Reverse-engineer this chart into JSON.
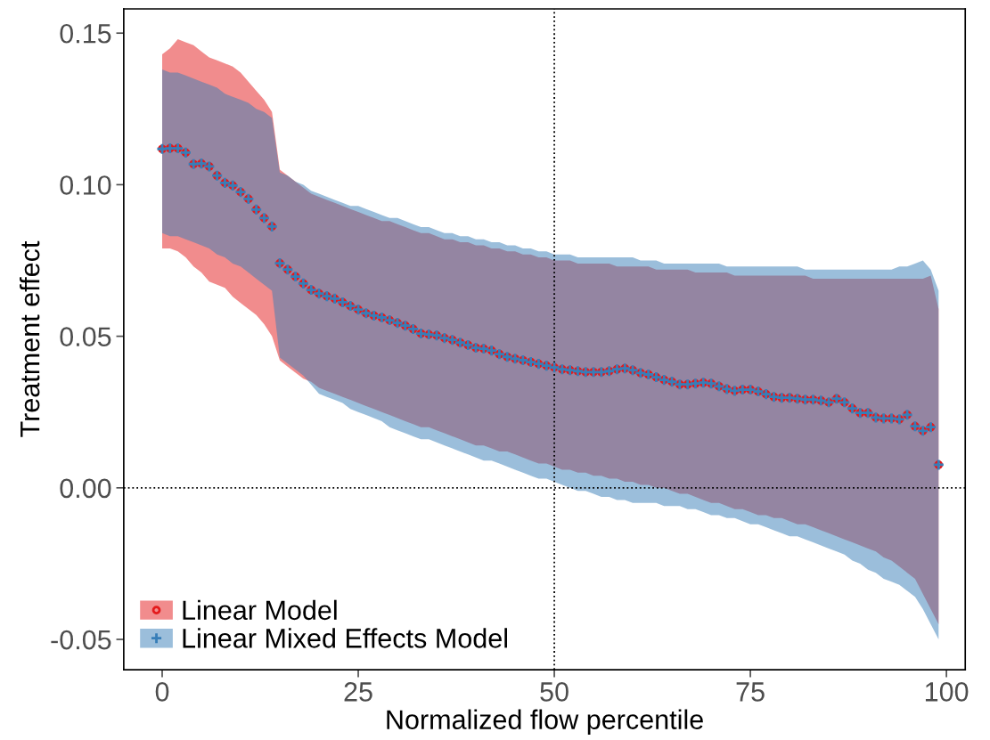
{
  "chart_data": {
    "type": "scatter",
    "xlabel": "Normalized flow percentile",
    "ylabel": "Treatment effect",
    "xlim": [
      -4.9,
      102.4
    ],
    "ylim": [
      -0.06,
      0.158
    ],
    "xticks": [
      0,
      25,
      50,
      75,
      100
    ],
    "yticks": [
      {
        "value": -0.05,
        "label": "-0.05"
      },
      {
        "value": 0,
        "label": "0.00"
      },
      {
        "value": 0.05,
        "label": "0.05"
      },
      {
        "value": 0.1,
        "label": "0.10"
      },
      {
        "value": 0.15,
        "label": "0.15"
      }
    ],
    "grid": false,
    "legend": "bottom left",
    "ref_lines": [
      {
        "axis": "x",
        "value": 50,
        "line_style": "dotted",
        "color": "#000000"
      },
      {
        "axis": "y",
        "value": 0,
        "line_style": "dotted",
        "color": "#000000"
      }
    ],
    "series": [
      {
        "name": "Linear Model",
        "color": "#e41a1c",
        "marker": "circle",
        "values": [
          0.1118,
          0.112,
          0.112,
          0.1106,
          0.1068,
          0.107,
          0.106,
          0.103,
          0.1006,
          0.0997,
          0.0976,
          0.0953,
          0.0918,
          0.089,
          0.0862,
          0.0741,
          0.072,
          0.0697,
          0.0674,
          0.0653,
          0.0641,
          0.0632,
          0.0624,
          0.0612,
          0.06,
          0.0588,
          0.0576,
          0.0568,
          0.0562,
          0.0553,
          0.0544,
          0.0535,
          0.0524,
          0.0509,
          0.0506,
          0.0503,
          0.0494,
          0.0488,
          0.0479,
          0.0471,
          0.0462,
          0.0459,
          0.0453,
          0.0441,
          0.0432,
          0.0426,
          0.0421,
          0.0415,
          0.0409,
          0.0403,
          0.0397,
          0.0391,
          0.0388,
          0.0385,
          0.0382,
          0.0382,
          0.0382,
          0.0385,
          0.0391,
          0.0394,
          0.0388,
          0.0379,
          0.0374,
          0.0365,
          0.0356,
          0.035,
          0.0341,
          0.0341,
          0.0344,
          0.0347,
          0.0344,
          0.0335,
          0.0326,
          0.032,
          0.0324,
          0.0324,
          0.0318,
          0.0309,
          0.03,
          0.0297,
          0.0297,
          0.0294,
          0.0291,
          0.0291,
          0.0288,
          0.0282,
          0.0294,
          0.0282,
          0.0262,
          0.0247,
          0.0247,
          0.0232,
          0.0229,
          0.0229,
          0.0226,
          0.0241,
          0.0203,
          0.0188,
          0.02,
          0.0076
        ],
        "lower": [
          0.079,
          0.079,
          0.078,
          0.076,
          0.073,
          0.071,
          0.068,
          0.067,
          0.066,
          0.063,
          0.061,
          0.059,
          0.057,
          0.054,
          0.05,
          0.042,
          0.04,
          0.038,
          0.036,
          0.035,
          0.033,
          0.032,
          0.031,
          0.03,
          0.029,
          0.028,
          0.027,
          0.026,
          0.025,
          0.024,
          0.023,
          0.022,
          0.021,
          0.02,
          0.02,
          0.019,
          0.018,
          0.017,
          0.016,
          0.015,
          0.014,
          0.014,
          0.013,
          0.012,
          0.012,
          0.011,
          0.01,
          0.009,
          0.008,
          0.008,
          0.007,
          0.006,
          0.006,
          0.005,
          0.005,
          0.004,
          0.004,
          0.003,
          0.003,
          0.002,
          0.002,
          0.001,
          0.001,
          0.0,
          0.0,
          -0.001,
          -0.002,
          -0.002,
          -0.003,
          -0.004,
          -0.005,
          -0.005,
          -0.006,
          -0.007,
          -0.007,
          -0.008,
          -0.009,
          -0.009,
          -0.01,
          -0.01,
          -0.011,
          -0.012,
          -0.012,
          -0.013,
          -0.014,
          -0.015,
          -0.016,
          -0.017,
          -0.018,
          -0.019,
          -0.02,
          -0.021,
          -0.023,
          -0.024,
          -0.026,
          -0.028,
          -0.03,
          -0.035,
          -0.04,
          -0.045
        ],
        "upper": [
          0.143,
          0.145,
          0.148,
          0.147,
          0.146,
          0.144,
          0.142,
          0.141,
          0.14,
          0.139,
          0.137,
          0.134,
          0.131,
          0.128,
          0.124,
          0.105,
          0.103,
          0.101,
          0.099,
          0.097,
          0.096,
          0.095,
          0.094,
          0.093,
          0.092,
          0.091,
          0.09,
          0.089,
          0.088,
          0.088,
          0.087,
          0.086,
          0.085,
          0.084,
          0.084,
          0.083,
          0.082,
          0.082,
          0.081,
          0.081,
          0.08,
          0.08,
          0.079,
          0.079,
          0.078,
          0.078,
          0.077,
          0.077,
          0.076,
          0.076,
          0.075,
          0.075,
          0.075,
          0.074,
          0.074,
          0.074,
          0.074,
          0.074,
          0.073,
          0.073,
          0.073,
          0.073,
          0.073,
          0.072,
          0.072,
          0.072,
          0.072,
          0.072,
          0.071,
          0.071,
          0.071,
          0.071,
          0.071,
          0.07,
          0.07,
          0.07,
          0.07,
          0.07,
          0.07,
          0.07,
          0.07,
          0.07,
          0.07,
          0.069,
          0.069,
          0.069,
          0.069,
          0.069,
          0.069,
          0.069,
          0.069,
          0.069,
          0.069,
          0.069,
          0.069,
          0.069,
          0.069,
          0.069,
          0.07,
          0.059
        ]
      },
      {
        "name": "Linear Mixed Effects Model",
        "color": "#377eb8",
        "marker": "cross",
        "values": [
          0.1118,
          0.112,
          0.112,
          0.1106,
          0.1068,
          0.107,
          0.106,
          0.103,
          0.1006,
          0.0997,
          0.0976,
          0.0953,
          0.0918,
          0.089,
          0.0862,
          0.0741,
          0.072,
          0.0697,
          0.0674,
          0.0653,
          0.0641,
          0.0632,
          0.0624,
          0.0612,
          0.06,
          0.0588,
          0.0576,
          0.0568,
          0.0562,
          0.0553,
          0.0544,
          0.0535,
          0.0524,
          0.0509,
          0.0506,
          0.0503,
          0.0494,
          0.0488,
          0.0479,
          0.0471,
          0.0462,
          0.0459,
          0.0453,
          0.0441,
          0.0432,
          0.0426,
          0.0421,
          0.0415,
          0.0409,
          0.0403,
          0.0397,
          0.0391,
          0.0388,
          0.0385,
          0.0382,
          0.0382,
          0.0382,
          0.0385,
          0.0391,
          0.0394,
          0.0388,
          0.0379,
          0.0374,
          0.0365,
          0.0356,
          0.035,
          0.0341,
          0.0341,
          0.0344,
          0.0347,
          0.0344,
          0.0335,
          0.0326,
          0.032,
          0.0324,
          0.0324,
          0.0318,
          0.0309,
          0.03,
          0.0297,
          0.0297,
          0.0294,
          0.0291,
          0.0291,
          0.0288,
          0.0282,
          0.0294,
          0.0282,
          0.0262,
          0.0247,
          0.0247,
          0.0232,
          0.0229,
          0.0229,
          0.0226,
          0.0241,
          0.0203,
          0.0188,
          0.02,
          0.0076
        ],
        "lower": [
          0.084,
          0.083,
          0.083,
          0.082,
          0.081,
          0.08,
          0.079,
          0.077,
          0.076,
          0.074,
          0.073,
          0.071,
          0.069,
          0.067,
          0.065,
          0.043,
          0.041,
          0.039,
          0.037,
          0.034,
          0.031,
          0.03,
          0.029,
          0.028,
          0.026,
          0.025,
          0.024,
          0.023,
          0.022,
          0.02,
          0.019,
          0.018,
          0.017,
          0.016,
          0.016,
          0.015,
          0.014,
          0.013,
          0.012,
          0.011,
          0.01,
          0.009,
          0.009,
          0.008,
          0.007,
          0.006,
          0.005,
          0.004,
          0.003,
          0.003,
          0.002,
          0.001,
          0.0,
          -0.001,
          -0.001,
          -0.002,
          -0.003,
          -0.003,
          -0.004,
          -0.004,
          -0.005,
          -0.005,
          -0.005,
          -0.005,
          -0.006,
          -0.006,
          -0.006,
          -0.007,
          -0.007,
          -0.008,
          -0.009,
          -0.009,
          -0.01,
          -0.01,
          -0.011,
          -0.012,
          -0.012,
          -0.013,
          -0.014,
          -0.015,
          -0.016,
          -0.016,
          -0.017,
          -0.018,
          -0.019,
          -0.02,
          -0.021,
          -0.022,
          -0.024,
          -0.025,
          -0.027,
          -0.028,
          -0.03,
          -0.031,
          -0.032,
          -0.034,
          -0.036,
          -0.04,
          -0.045,
          -0.05
        ],
        "upper": [
          0.138,
          0.137,
          0.137,
          0.136,
          0.135,
          0.134,
          0.133,
          0.132,
          0.13,
          0.129,
          0.128,
          0.127,
          0.125,
          0.124,
          0.122,
          0.104,
          0.103,
          0.101,
          0.1,
          0.098,
          0.097,
          0.096,
          0.095,
          0.094,
          0.093,
          0.093,
          0.092,
          0.091,
          0.09,
          0.089,
          0.089,
          0.088,
          0.087,
          0.086,
          0.086,
          0.085,
          0.084,
          0.084,
          0.083,
          0.083,
          0.082,
          0.082,
          0.081,
          0.081,
          0.08,
          0.08,
          0.079,
          0.079,
          0.078,
          0.078,
          0.077,
          0.077,
          0.077,
          0.076,
          0.076,
          0.076,
          0.076,
          0.076,
          0.076,
          0.076,
          0.076,
          0.075,
          0.075,
          0.075,
          0.074,
          0.074,
          0.074,
          0.074,
          0.074,
          0.074,
          0.074,
          0.074,
          0.073,
          0.073,
          0.073,
          0.073,
          0.073,
          0.073,
          0.073,
          0.073,
          0.073,
          0.073,
          0.072,
          0.072,
          0.072,
          0.072,
          0.072,
          0.072,
          0.072,
          0.072,
          0.072,
          0.072,
          0.072,
          0.072,
          0.073,
          0.073,
          0.074,
          0.075,
          0.072,
          0.065
        ]
      }
    ],
    "x": [
      0,
      1,
      2,
      3,
      4,
      5,
      6,
      7,
      8,
      9,
      10,
      11,
      12,
      13,
      14,
      15,
      16,
      17,
      18,
      19,
      20,
      21,
      22,
      23,
      24,
      25,
      26,
      27,
      28,
      29,
      30,
      31,
      32,
      33,
      34,
      35,
      36,
      37,
      38,
      39,
      40,
      41,
      42,
      43,
      44,
      45,
      46,
      47,
      48,
      49,
      50,
      51,
      52,
      53,
      54,
      55,
      56,
      57,
      58,
      59,
      60,
      61,
      62,
      63,
      64,
      65,
      66,
      67,
      68,
      69,
      70,
      71,
      72,
      73,
      74,
      75,
      76,
      77,
      78,
      79,
      80,
      81,
      82,
      83,
      84,
      85,
      86,
      87,
      88,
      89,
      90,
      91,
      92,
      93,
      94,
      95,
      96,
      97,
      98,
      99
    ]
  }
}
